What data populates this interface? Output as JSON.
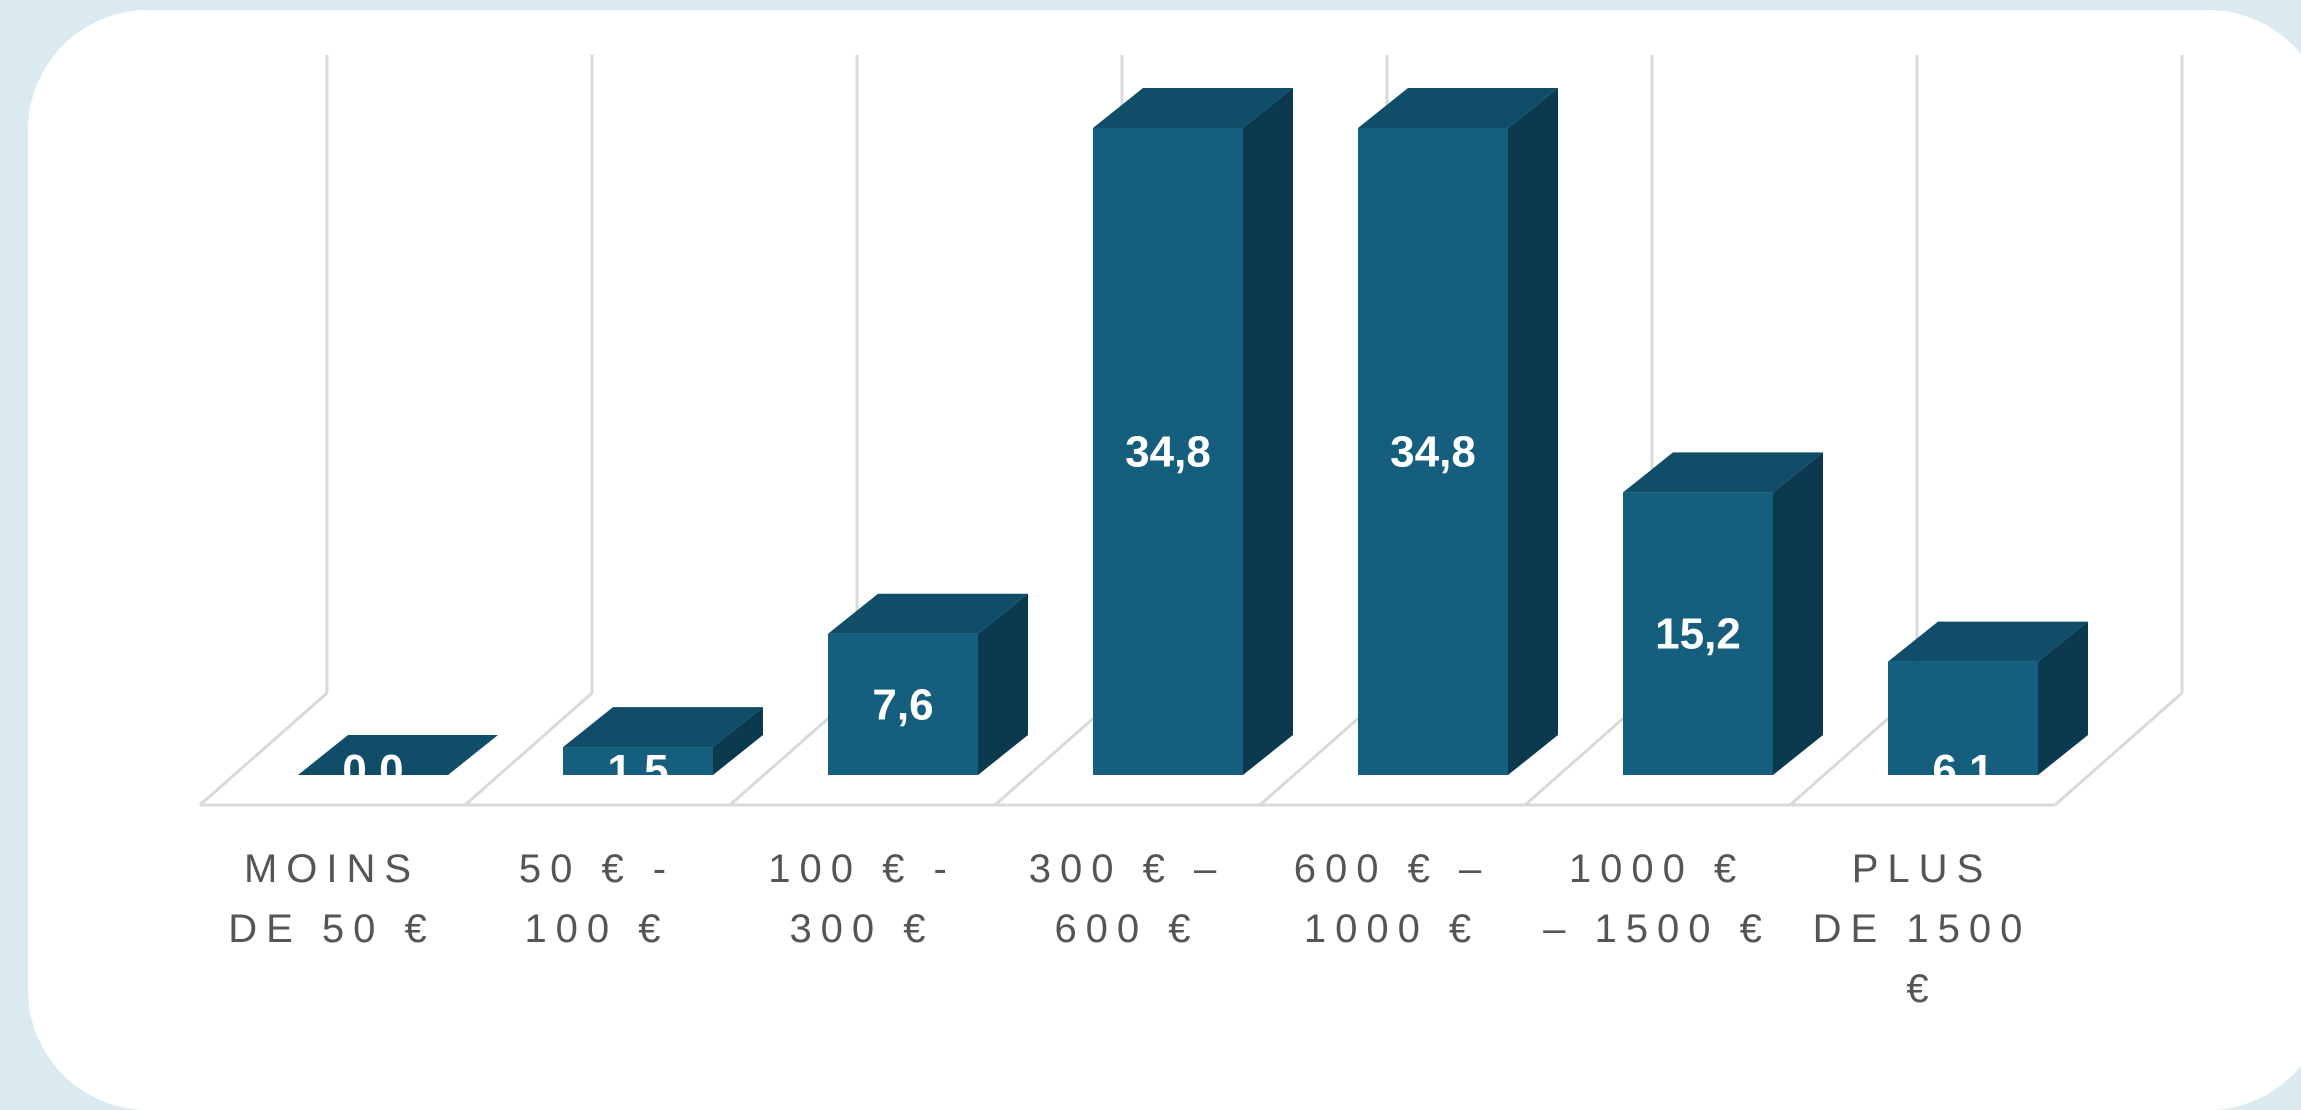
{
  "chart_data": {
    "type": "bar",
    "title": "",
    "xlabel": "",
    "ylabel": "",
    "categories": [
      [
        "MOINS",
        "DE 50 €"
      ],
      [
        "50 € -",
        "100 €"
      ],
      [
        "100 € -",
        "300 €"
      ],
      [
        "300 € –",
        "600 €"
      ],
      [
        "600 € –",
        "1000 €"
      ],
      [
        "1000 €",
        "– 1500 €"
      ],
      [
        "PLUS",
        "DE 1500",
        "€"
      ]
    ],
    "values": [
      0.0,
      1.5,
      7.6,
      34.8,
      34.8,
      15.2,
      6.1
    ],
    "value_labels": [
      "0,0",
      "1,5",
      "7,6",
      "34,8",
      "34,8",
      "15,2",
      "6,1"
    ],
    "ylim": [
      0,
      34.8
    ],
    "grid": true,
    "legend": "none",
    "style": "3d-column",
    "colors": {
      "bar_front": "#155e7d",
      "bar_top": "#0f4d69",
      "bar_side": "#0b3a4f",
      "gridline": "#d9d9d9",
      "label": "#555555"
    }
  }
}
